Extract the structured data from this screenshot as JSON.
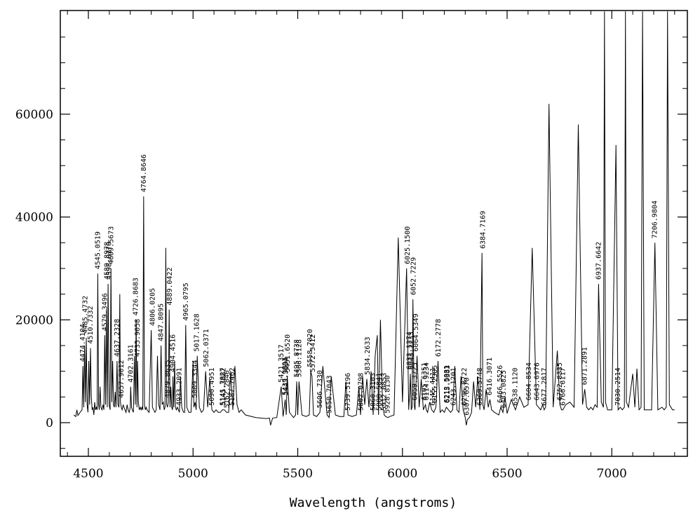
{
  "chart_data": {
    "type": "line",
    "title": "",
    "xlabel": "Wavelength (angstroms)",
    "ylabel": "",
    "xlim": [
      4400,
      7400
    ],
    "ylim": [
      -6500,
      80000
    ],
    "xticks": [
      4500,
      5000,
      5500,
      6000,
      6500,
      7000
    ],
    "yticks": [
      0,
      20000,
      40000,
      60000
    ],
    "grid": false,
    "series": [
      {
        "values_note": "spectrum",
        "x": [
          4430,
          4440,
          4445,
          4450,
          4460,
          4470,
          4474,
          4478,
          4482,
          4486,
          4490,
          4494,
          4498,
          4502,
          4506,
          4510,
          4514,
          4518,
          4522,
          4526,
          4530,
          4534,
          4538,
          4542,
          4545,
          4549,
          4552,
          4556,
          4560,
          4565,
          4570,
          4574,
          4578,
          4582,
          4586,
          4590,
          4594,
          4599,
          4604,
          4608,
          4612,
          4616,
          4620,
          4624,
          4628,
          4632,
          4637,
          4641,
          4646,
          4650,
          4653,
          4657,
          4661,
          4666,
          4670,
          4675,
          4680,
          4685,
          4690,
          4695,
          4700,
          4702,
          4706,
          4710,
          4715,
          4720,
          4724,
          4728,
          4732,
          4735,
          4739,
          4743,
          4748,
          4752,
          4756,
          4760,
          4764,
          4768,
          4772,
          4776,
          4780,
          4790,
          4800,
          4806,
          4812,
          4818,
          4824,
          4830,
          4836,
          4842,
          4847,
          4852,
          4858,
          4862,
          4866,
          4870,
          4874,
          4878,
          4882,
          4886,
          4890,
          4894,
          4898,
          4902,
          4904,
          4908,
          4912,
          4916,
          4920,
          4925,
          4930,
          4935,
          4940,
          4946,
          4950,
          4955,
          4960,
          4965,
          4970,
          4975,
          4980,
          4990,
          5000,
          5004,
          5010,
          5015,
          5020,
          5030,
          5040,
          5050,
          5060,
          5070,
          5080,
          5090,
          5100,
          5110,
          5120,
          5130,
          5140,
          5150,
          5160,
          5170,
          5180,
          5190,
          5200,
          5210,
          5220,
          5230,
          5250,
          5300,
          5350,
          5365,
          5370,
          5375,
          5380,
          5400,
          5421,
          5430,
          5440,
          5445,
          5450,
          5460,
          5470,
          5480,
          5490,
          5495,
          5500,
          5506,
          5520,
          5540,
          5555,
          5562,
          5568,
          5575,
          5590,
          5606,
          5620,
          5640,
          5650,
          5660,
          5680,
          5700,
          5720,
          5730,
          5740,
          5760,
          5780,
          5792,
          5800,
          5810,
          5820,
          5830,
          5840,
          5850,
          5860,
          5870,
          5880,
          5886,
          5895,
          5905,
          5913,
          5920,
          5930,
          5940,
          5960,
          5980,
          6000,
          6020,
          6030,
          6035,
          6038,
          6042,
          6046,
          6050,
          6056,
          6060,
          6070,
          6080,
          6090,
          6100,
          6110,
          6114,
          6120,
          6130,
          6140,
          6150,
          6160,
          6170,
          6180,
          6190,
          6200,
          6210,
          6220,
          6230,
          6240,
          6250,
          6260,
          6270,
          6280,
          6290,
          6300,
          6305,
          6310,
          6320,
          6330,
          6340,
          6350,
          6360,
          6370,
          6380,
          6384,
          6390,
          6400,
          6410,
          6418,
          6426,
          6440,
          6460,
          6470,
          6480,
          6490,
          6500,
          6520,
          6540,
          6560,
          6580,
          6600,
          6620,
          6640,
          6660,
          6670,
          6677,
          6684,
          6700,
          6720,
          6740,
          6752,
          6760,
          6766,
          6780,
          6800,
          6820,
          6840,
          6860,
          6871,
          6880,
          6890,
          6900,
          6910,
          6920,
          6930,
          6937,
          6950,
          6960,
          6965,
          6970,
          6980,
          7000,
          7020,
          7030,
          7040,
          7050,
          7060,
          7065,
          7070,
          7080,
          7100,
          7110,
          7120,
          7130,
          7140,
          7147,
          7155,
          7170,
          7190,
          7206,
          7220,
          7240,
          7250,
          7260,
          7266,
          7275,
          7290,
          7300
        ],
        "values": [
          1500,
          1200,
          2500,
          1400,
          2000,
          2500,
          11000,
          3000,
          15000,
          4000,
          16500,
          3500,
          2000,
          12000,
          3500,
          14500,
          5000,
          2500,
          3000,
          1500,
          4000,
          2500,
          3000,
          2500,
          29000,
          3500,
          2500,
          7000,
          3000,
          2500,
          3500,
          2500,
          17000,
          3500,
          22000,
          3000,
          27000,
          3500,
          2500,
          30000,
          4000,
          12000,
          3500,
          3000,
          6000,
          3000,
          12000,
          3500,
          3000,
          25000,
          4000,
          3000,
          2500,
          3500,
          3000,
          2500,
          2000,
          3500,
          2500,
          2000,
          3000,
          7000,
          3000,
          2500,
          2000,
          13000,
          3500,
          20000,
          3000,
          12000,
          4000,
          2500,
          3000,
          2500,
          3000,
          2500,
          44000,
          3500,
          2500,
          3000,
          2500,
          2000,
          18000,
          3000,
          2500,
          2000,
          2500,
          13000,
          3500,
          2500,
          15000,
          3500,
          4000,
          2500,
          3000,
          34000,
          3500,
          3000,
          4000,
          22000,
          3000,
          7000,
          3000,
          2500,
          9000,
          3000,
          12000,
          3000,
          2500,
          3000,
          2500,
          2000,
          9000,
          3000,
          2500,
          2000,
          2000,
          19000,
          3000,
          2500,
          2000,
          2000,
          12000,
          3000,
          4000,
          2500,
          13000,
          3000,
          2000,
          2500,
          10000,
          3000,
          8500,
          2500,
          2000,
          2500,
          2000,
          2000,
          2500,
          2500,
          2000,
          2000,
          10000,
          2500,
          11000,
          3500,
          2000,
          2500,
          1500,
          1000,
          800,
          900,
          -500,
          200,
          900,
          1000,
          7000,
          1200,
          4500,
          1500,
          9000,
          2000,
          1500,
          1000,
          1500,
          8000,
          1500,
          8000,
          1500,
          1200,
          1500,
          10000,
          9000,
          1500,
          1200,
          2000,
          11000,
          1500,
          1000,
          9000,
          1500,
          1200,
          1200,
          8000,
          1500,
          1200,
          1500,
          7000,
          1500,
          9000,
          3500,
          8500,
          3000,
          10000,
          1500,
          13000,
          17000,
          1500,
          20000,
          3500,
          1500,
          1200,
          1000,
          1200,
          1500,
          36000,
          4000,
          30000,
          2500,
          6000,
          9500,
          2500,
          3000,
          24000,
          3500,
          2500,
          13000,
          3000,
          8500,
          2500,
          3500,
          2500,
          2000,
          4000,
          2500,
          2000,
          3000,
          12000,
          2000,
          2500,
          2000,
          3000,
          2500,
          2000,
          2500,
          11000,
          2500,
          2000,
          9000,
          2500,
          1000,
          -500,
          600,
          1000,
          2000,
          8000,
          3000,
          9000,
          2500,
          33000,
          3500,
          2500,
          6500,
          3000,
          4500,
          2500,
          2000,
          1500,
          3000,
          2000,
          5000,
          1800,
          4500,
          2500,
          5000,
          3000,
          3500,
          34000,
          3500,
          2500,
          3500,
          2500,
          3000,
          62000,
          3000,
          14000,
          3500,
          2500,
          2500,
          3500,
          4000,
          3000,
          58000,
          3500,
          6500,
          3000,
          2500,
          3000,
          2500,
          3500,
          3000,
          27000,
          4000,
          3000,
          80000,
          4000,
          2500,
          2500,
          54000,
          2500,
          3000,
          2500,
          3000,
          80000,
          4000,
          3000,
          9500,
          3000,
          10500,
          2500,
          3000,
          80000,
          2500,
          2500,
          2500,
          35000,
          2500,
          3000,
          2500,
          3000,
          80000,
          3500,
          2500,
          2500
        ]
      }
    ],
    "line_labels": [
      {
        "x": 4474,
        "label": "4474.4104"
      },
      {
        "x": 4485,
        "label": "4485.4732"
      },
      {
        "x": 4510,
        "label": "4510.7332"
      },
      {
        "x": 4545,
        "label": "4545.0519"
      },
      {
        "x": 4579,
        "label": "4579.3496"
      },
      {
        "x": 4589,
        "label": "4589.8978"
      },
      {
        "x": 4598,
        "label": "4598.0170"
      },
      {
        "x": 4609,
        "label": "4609.5673"
      },
      {
        "x": 4637,
        "label": "4637.2328"
      },
      {
        "x": 4657,
        "label": "4657.9012"
      },
      {
        "x": 4702,
        "label": "4702.3161"
      },
      {
        "x": 4726,
        "label": "4726.8683"
      },
      {
        "x": 4735,
        "label": "4735.9058"
      },
      {
        "x": 4764,
        "label": "4764.8646"
      },
      {
        "x": 4806,
        "label": "4806.0205"
      },
      {
        "x": 4847,
        "label": "4847.8095"
      },
      {
        "x": 4879,
        "label": "4879.8635"
      },
      {
        "x": 4889,
        "label": "4889.0422"
      },
      {
        "x": 4904,
        "label": "4904.4516"
      },
      {
        "x": 4933,
        "label": "4933.2091"
      },
      {
        "x": 4965,
        "label": "4965.0795"
      },
      {
        "x": 5009,
        "label": "5009.3344"
      },
      {
        "x": 5017,
        "label": "5017.1628"
      },
      {
        "x": 5062,
        "label": "5062.0371"
      },
      {
        "x": 5090,
        "label": "5090.4951"
      },
      {
        "x": 5141,
        "label": "5141.7827"
      },
      {
        "x": 5145,
        "label": "5145.3082"
      },
      {
        "x": 5162,
        "label": "5162.2846"
      },
      {
        "x": 5187,
        "label": "5187.7462"
      },
      {
        "x": 5421,
        "label": "5421.3517"
      },
      {
        "x": 5439,
        "label": "5439.9891"
      },
      {
        "x": 5443,
        "label": "5443.3934"
      },
      {
        "x": 5451,
        "label": "5451.6520"
      },
      {
        "x": 5495,
        "label": "5495.8738"
      },
      {
        "x": 5506,
        "label": "5506.1128"
      },
      {
        "x": 5558,
        "label": "5558.7020"
      },
      {
        "x": 5572,
        "label": "5572.5412"
      },
      {
        "x": 5606,
        "label": "5606.7330"
      },
      {
        "x": 5650,
        "label": "5650.7043"
      },
      {
        "x": 5739,
        "label": "5739.5196"
      },
      {
        "x": 5802,
        "label": "5802.0798"
      },
      {
        "x": 5834,
        "label": "5834.2633"
      },
      {
        "x": 5860,
        "label": "5860.3103"
      },
      {
        "x": 5888,
        "label": "5888.5841"
      },
      {
        "x": 5912,
        "label": "5912.0853"
      },
      {
        "x": 5928,
        "label": "5928.8130"
      },
      {
        "x": 6025,
        "label": "6025.1500"
      },
      {
        "x": 6032,
        "label": "6032.1274"
      },
      {
        "x": 6043,
        "label": "6043.2233"
      },
      {
        "x": 6052,
        "label": "6052.7229"
      },
      {
        "x": 6059,
        "label": "6059.3725"
      },
      {
        "x": 6064,
        "label": "6064.5349"
      },
      {
        "x": 6105,
        "label": "6105.6351"
      },
      {
        "x": 6114,
        "label": "6114.9234"
      },
      {
        "x": 6145,
        "label": "6145.4411"
      },
      {
        "x": 6155,
        "label": "6155.2385"
      },
      {
        "x": 6172,
        "label": "6172.2778"
      },
      {
        "x": 6212,
        "label": "6212.5031"
      },
      {
        "x": 6215,
        "label": "6215.9383"
      },
      {
        "x": 6243,
        "label": "6243.1201"
      },
      {
        "x": 6296,
        "label": "6296.8722"
      },
      {
        "x": 6307,
        "label": "6307.6570"
      },
      {
        "x": 6369,
        "label": "6369.5748"
      },
      {
        "x": 6384,
        "label": "6384.7169"
      },
      {
        "x": 6416,
        "label": "6416.3071"
      },
      {
        "x": 6466,
        "label": "6466.5526"
      },
      {
        "x": 6483,
        "label": "6483.0825"
      },
      {
        "x": 6538,
        "label": "6538.1120"
      },
      {
        "x": 6604,
        "label": "6604.8534"
      },
      {
        "x": 6643,
        "label": "6643.6976"
      },
      {
        "x": 6677,
        "label": "6677.2817"
      },
      {
        "x": 6752,
        "label": "6752.8335"
      },
      {
        "x": 6766,
        "label": "6766.6117"
      },
      {
        "x": 6871,
        "label": "6871.2891"
      },
      {
        "x": 6937,
        "label": "6937.6642"
      },
      {
        "x": 7030,
        "label": "7030.2514"
      },
      {
        "x": 7206,
        "label": "7206.9804"
      }
    ]
  }
}
